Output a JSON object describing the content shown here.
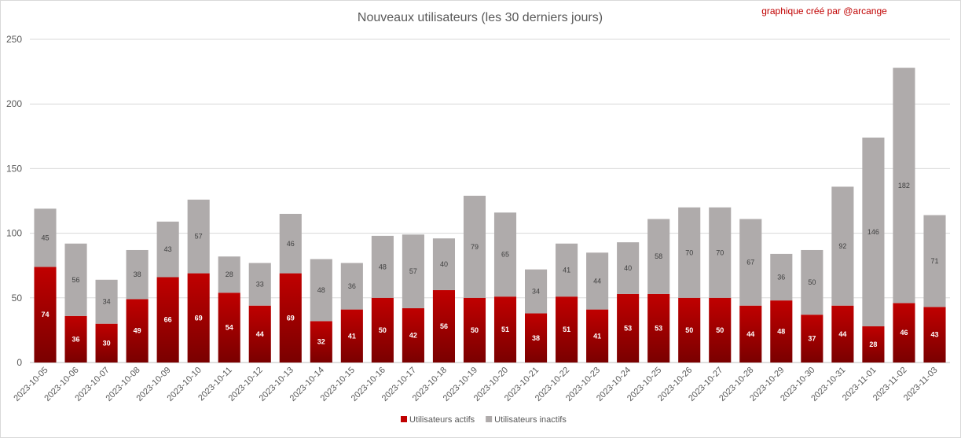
{
  "chart_data": {
    "type": "bar",
    "stacked": true,
    "title": "Nouveaux utilisateurs  (les 30 derniers  jours)",
    "credit": "graphique créé par @arcange",
    "categories": [
      "2023-10-05",
      "2023-10-06",
      "2023-10-07",
      "2023-10-08",
      "2023-10-09",
      "2023-10-10",
      "2023-10-11",
      "2023-10-12",
      "2023-10-13",
      "2023-10-14",
      "2023-10-15",
      "2023-10-16",
      "2023-10-17",
      "2023-10-18",
      "2023-10-19",
      "2023-10-20",
      "2023-10-21",
      "2023-10-22",
      "2023-10-23",
      "2023-10-24",
      "2023-10-25",
      "2023-10-26",
      "2023-10-27",
      "2023-10-28",
      "2023-10-29",
      "2023-10-30",
      "2023-10-31",
      "2023-11-01",
      "2023-11-02",
      "2023-11-03"
    ],
    "series": [
      {
        "name": "Utilisateurs actifs",
        "color": "#c00000",
        "values": [
          74,
          36,
          30,
          49,
          66,
          69,
          54,
          44,
          69,
          32,
          41,
          50,
          42,
          56,
          50,
          51,
          38,
          51,
          41,
          53,
          53,
          50,
          50,
          44,
          48,
          37,
          44,
          28,
          46,
          43
        ]
      },
      {
        "name": "Utilisateurs inactifs",
        "color": "#afabab",
        "values": [
          45,
          56,
          34,
          38,
          43,
          57,
          28,
          33,
          46,
          48,
          36,
          48,
          57,
          40,
          79,
          65,
          34,
          41,
          44,
          40,
          58,
          70,
          70,
          67,
          36,
          50,
          92,
          146,
          182,
          71
        ]
      }
    ],
    "yticks": [
      0,
      50,
      100,
      150,
      200,
      250
    ],
    "ylim": [
      0,
      250
    ],
    "grid": true,
    "legend_position": "bottom"
  }
}
